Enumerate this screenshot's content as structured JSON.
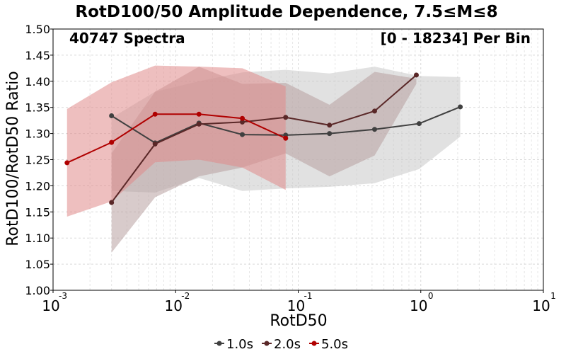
{
  "chart_data": {
    "type": "line",
    "title": "RotD100/50 Amplitude Dependence, 7.5≤M≤8",
    "annotation_left": "40747 Spectra",
    "annotation_right": "[0 - 18234] Per Bin",
    "xlabel": "RotD50",
    "ylabel": "RotD100/RotD50 Ratio",
    "x_scale": "log",
    "xlim": [
      0.001,
      10
    ],
    "ylim": [
      1.0,
      1.5
    ],
    "y_ticks": [
      "1.00",
      "1.05",
      "1.10",
      "1.15",
      "1.20",
      "1.25",
      "1.30",
      "1.35",
      "1.40",
      "1.45",
      "1.50"
    ],
    "x_ticks": [
      {
        "base": "10",
        "exp": "-3"
      },
      {
        "base": "10",
        "exp": "-2"
      },
      {
        "base": "10",
        "exp": "-1"
      },
      {
        "base": "10",
        "exp": "0"
      },
      {
        "base": "10",
        "exp": "1"
      }
    ],
    "grid": true,
    "legend_position": "bottom",
    "series": [
      {
        "name": "1.0s",
        "color": "#404040",
        "band_color": "#c8c8c8",
        "x": [
          0.003,
          0.0068,
          0.0155,
          0.035,
          0.079,
          0.18,
          0.42,
          0.97,
          2.1
        ],
        "values": [
          1.334,
          1.282,
          1.32,
          1.298,
          1.297,
          1.3,
          1.308,
          1.319,
          1.351
        ],
        "upper": [
          1.33,
          1.38,
          1.4,
          1.417,
          1.422,
          1.415,
          1.428,
          1.41,
          1.408
        ],
        "lower": [
          1.19,
          1.187,
          1.215,
          1.19,
          1.195,
          1.198,
          1.205,
          1.232,
          1.294
        ]
      },
      {
        "name": "2.0s",
        "color": "#5a2828",
        "band_color": "#b8a0a0",
        "x": [
          0.003,
          0.0068,
          0.0155,
          0.035,
          0.079,
          0.18,
          0.42,
          0.92
        ],
        "values": [
          1.168,
          1.28,
          1.318,
          1.322,
          1.331,
          1.316,
          1.343,
          1.412
        ],
        "upper": [
          1.262,
          1.38,
          1.428,
          1.395,
          1.397,
          1.355,
          1.418,
          1.405
        ],
        "lower": [
          1.072,
          1.178,
          1.218,
          1.235,
          1.262,
          1.218,
          1.258,
          1.395
        ]
      },
      {
        "name": "5.0s",
        "color": "#b00000",
        "band_color": "#e08a8a",
        "x": [
          0.0013,
          0.003,
          0.0068,
          0.0155,
          0.035,
          0.079
        ],
        "values": [
          1.244,
          1.283,
          1.337,
          1.337,
          1.329,
          1.291
        ],
        "upper": [
          1.347,
          1.398,
          1.43,
          1.428,
          1.425,
          1.39
        ],
        "lower": [
          1.141,
          1.17,
          1.245,
          1.25,
          1.235,
          1.192
        ]
      }
    ]
  }
}
